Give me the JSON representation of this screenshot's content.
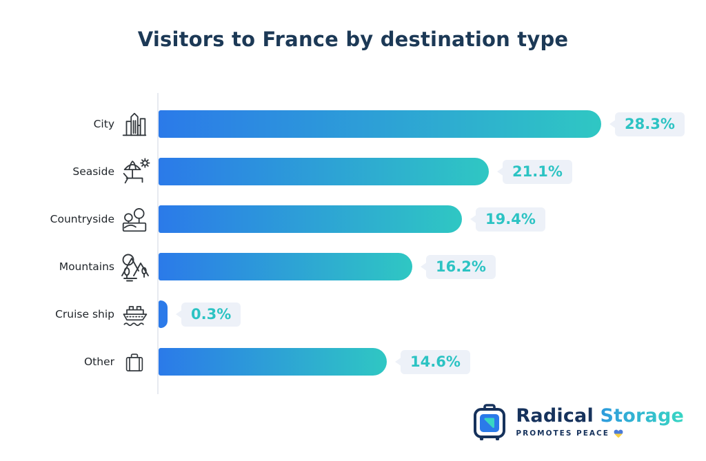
{
  "title": "Visitors to France by destination type",
  "chart_data": {
    "type": "bar",
    "orientation": "horizontal",
    "title": "Visitors to France by destination type",
    "categories": [
      "City",
      "Seaside",
      "Countryside",
      "Mountains",
      "Cruise ship",
      "Other"
    ],
    "values": [
      28.3,
      21.1,
      19.4,
      16.2,
      0.3,
      14.6
    ],
    "value_labels": [
      "28.3%",
      "21.1%",
      "19.4%",
      "16.2%",
      "0.3%",
      "14.6%"
    ],
    "icons": [
      "city-buildings-icon",
      "beach-umbrella-icon",
      "countryside-trees-icon",
      "mountains-icon",
      "cruise-ship-icon",
      "suitcase-icon"
    ],
    "unit": "%",
    "xlim": [
      0,
      28.3
    ],
    "grid": false,
    "legend": false,
    "bar_gradient_start": "#2B7AE9",
    "bar_gradient_end": "#2FC7C3"
  },
  "colors": {
    "title_text": "#1C3956",
    "value_text": "#2CC3C3",
    "value_bubble_bg": "#EDF1F8",
    "axis_line": "#E7EAF0",
    "bar_start": "#2B7AE9",
    "bar_end": "#2FC7C3",
    "label_text": "#1F2429",
    "brand_navy": "#16325C",
    "brand_teal": "#38D6C3"
  },
  "branding": {
    "name_part1": "Radical",
    "name_part2": "Storage",
    "tagline": "PROMOTES PEACE"
  }
}
